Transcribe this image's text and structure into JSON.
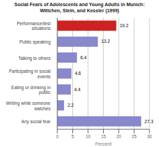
{
  "chart_data": {
    "type": "bar",
    "orientation": "horizontal",
    "title": "Social Fears of Adolescents and Young Adults in Munich:\nWittchen, Stein, and Kessler (1999)",
    "categories": [
      "Performance/test\nsituations",
      "Public speaking",
      "Talking to others",
      "Participating in social\nevents",
      "Eating or drinking in\npublic",
      "Writing while someone\nwatches",
      "Any social fear"
    ],
    "values": [
      19.2,
      13.2,
      6.4,
      4.6,
      4.4,
      2.2,
      27.3
    ],
    "colors": [
      "#cc2222",
      "#8888cc",
      "#8888cc",
      "#8888cc",
      "#8888cc",
      "#8888cc",
      "#8888cc"
    ],
    "xlabel": "Percent",
    "xlim": [
      0,
      30
    ],
    "xticks": [
      0,
      5,
      10,
      15,
      20,
      25,
      30
    ],
    "grid": true,
    "data_labels": true
  }
}
